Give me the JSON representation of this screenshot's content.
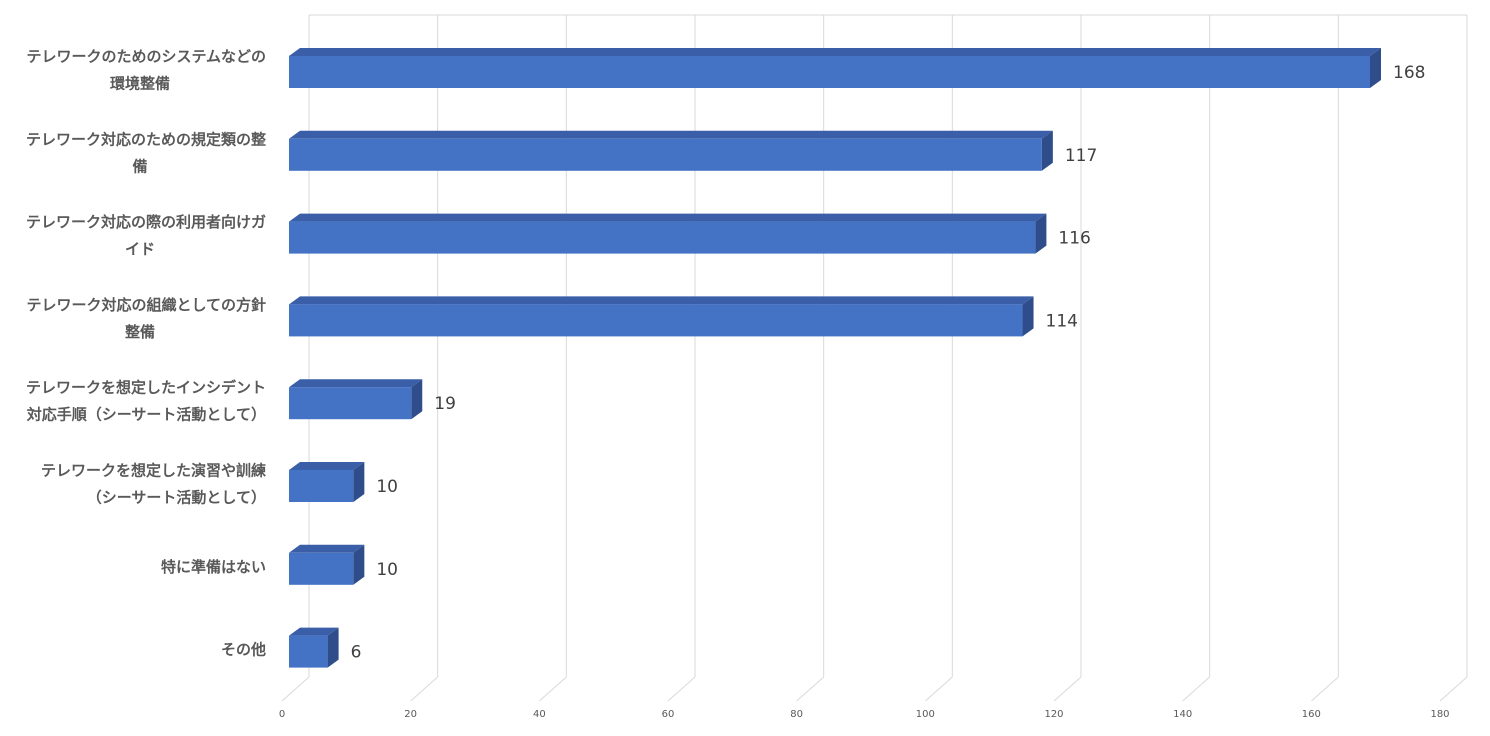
{
  "chart_data": {
    "type": "bar",
    "orientation": "horizontal",
    "three_d": true,
    "categories": [
      [
        "テレワークのためのシステムなどの",
        "環境整備"
      ],
      [
        "テレワーク対応のための規定類の整",
        "備"
      ],
      [
        "テレワーク対応の際の利用者向けガ",
        "イド"
      ],
      [
        "テレワーク対応の組織としての方針",
        "整備"
      ],
      [
        "テレワークを想定したインシデント",
        "対応手順（シーサート活動として）"
      ],
      [
        "テレワークを想定した演習や訓練",
        "（シーサート活動として）"
      ],
      [
        "特に準備はない"
      ],
      [
        "その他"
      ]
    ],
    "values": [
      168,
      117,
      116,
      114,
      19,
      10,
      10,
      6
    ],
    "data_labels": [
      "168",
      "117",
      "116",
      "114",
      "19",
      "10",
      "10",
      "6"
    ],
    "xlim": [
      0,
      180
    ],
    "x_ticks": [
      "0",
      "20",
      "40",
      "60",
      "80",
      "100",
      "120",
      "140",
      "160",
      "180"
    ],
    "grid": true,
    "legend": "none",
    "colors": {
      "bar_front": "#4472c4",
      "bar_top": "#3a5fa8",
      "bar_side": "#2f4d8a",
      "grid": "#d9d9d9"
    }
  }
}
